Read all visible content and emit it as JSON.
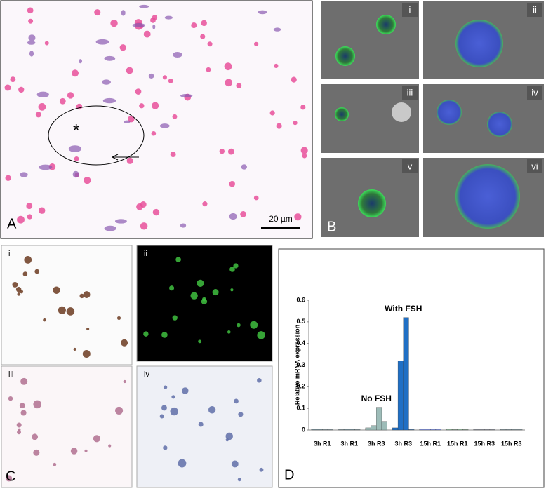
{
  "panels": {
    "A": {
      "label": "A",
      "scale_bar": "20 µm",
      "marker": "*"
    },
    "B": {
      "label": "B",
      "subpanels": [
        "i",
        "ii",
        "iii",
        "iv",
        "v",
        "vi"
      ]
    },
    "C": {
      "label": "C",
      "subpanels": [
        "i",
        "ii",
        "iii",
        "iv"
      ]
    },
    "D": {
      "label": "D"
    }
  },
  "chart_data": {
    "type": "bar",
    "y_label": "Relative mRNA expression",
    "annotations": [
      "No FSH",
      "With FSH"
    ],
    "categories": [
      "3h R1",
      "3h R1",
      "3h R3",
      "3h R3",
      "15h R1",
      "15h R1",
      "15h R3",
      "15h R3"
    ],
    "colors": [
      "#8aa9b5",
      "#8aa9b5",
      "#9dbcb8",
      "#1f6fc5",
      "#7f8fd6",
      "#8fb39a",
      "#9aa0b5",
      "#8aa9b5"
    ],
    "series": [
      {
        "values": [
          0.003,
          0.002,
          0.01,
          0.01,
          0.004,
          0.004,
          0.002,
          0.002
        ]
      },
      {
        "values": [
          0.003,
          0.003,
          0.02,
          0.32,
          0.004,
          0.002,
          0.002,
          0.002
        ]
      },
      {
        "values": [
          0.002,
          0.003,
          0.105,
          0.52,
          0.004,
          0.006,
          0.002,
          0.002
        ]
      },
      {
        "values": [
          0.002,
          0.002,
          0.04,
          0.002,
          0.004,
          0.002,
          0.002,
          0.002
        ]
      }
    ],
    "ylim": [
      0,
      0.6
    ],
    "yticks": [
      0,
      0.1,
      0.2,
      0.3,
      0.4,
      0.5,
      0.6
    ]
  }
}
